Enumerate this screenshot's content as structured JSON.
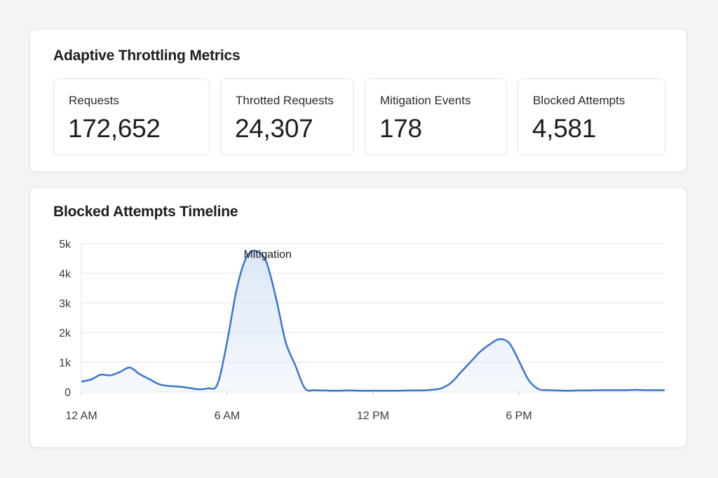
{
  "metrics_card": {
    "title": "Adaptive Throttling Metrics",
    "stats": [
      {
        "label": "Requests",
        "value": "172,652"
      },
      {
        "label": "Throtted Requests",
        "value": "24,307"
      },
      {
        "label": "Mitigation Events",
        "value": "178"
      },
      {
        "label": "Blocked Attempts",
        "value": "4,581"
      }
    ]
  },
  "timeline_card": {
    "title": "Blocked Attempts Timeline"
  },
  "colors": {
    "line": "#3a76cc",
    "fill": "#dbe6f5",
    "grid": "#e6e6e9",
    "text": "#1d1d1f"
  },
  "chart_data": {
    "type": "area",
    "title": "Blocked Attempts Timeline",
    "xlabel": "",
    "ylabel": "",
    "x_unit": "hour of day",
    "x_ticks": [
      {
        "x": 0,
        "label": "12 AM"
      },
      {
        "x": 6,
        "label": "6 AM"
      },
      {
        "x": 12,
        "label": "12 PM"
      },
      {
        "x": 18,
        "label": "6 PM"
      }
    ],
    "y_ticks": [
      {
        "y": 0,
        "label": "0"
      },
      {
        "y": 1000,
        "label": "1k"
      },
      {
        "y": 2000,
        "label": "2k"
      },
      {
        "y": 3000,
        "label": "3k"
      },
      {
        "y": 4000,
        "label": "4k"
      },
      {
        "y": 5000,
        "label": "5k"
      }
    ],
    "xlim": [
      0,
      24
    ],
    "ylim": [
      0,
      5000
    ],
    "grid": true,
    "annotations": [
      {
        "x": 6.1,
        "y": 4700,
        "text": "Mitigation"
      }
    ],
    "series": [
      {
        "x": [
          0,
          0.4,
          0.8,
          1.2,
          1.6,
          2.0,
          2.4,
          2.8,
          3.2,
          3.6,
          4.0,
          4.4,
          4.8,
          5.2,
          5.6,
          6.0,
          6.4,
          6.8,
          7.2,
          7.6,
          8.0,
          8.4,
          8.8,
          9.2,
          9.6,
          10,
          10.5,
          11,
          11.5,
          12,
          12.5,
          13,
          13.5,
          14,
          14.4,
          14.8,
          15.2,
          15.6,
          16.0,
          16.4,
          16.8,
          17.2,
          17.6,
          18.0,
          18.4,
          18.8,
          19.2,
          19.6,
          20.0,
          20.4,
          20.8,
          21.2,
          21.6,
          22.0,
          22.4,
          22.8,
          23.2,
          23.6,
          24
        ],
        "y": [
          350,
          420,
          580,
          560,
          680,
          820,
          600,
          430,
          260,
          200,
          180,
          140,
          90,
          120,
          260,
          1700,
          3500,
          4550,
          4750,
          4400,
          3200,
          1700,
          900,
          120,
          60,
          50,
          40,
          50,
          40,
          40,
          40,
          40,
          50,
          50,
          70,
          120,
          300,
          650,
          1000,
          1350,
          1600,
          1780,
          1650,
          1050,
          400,
          100,
          60,
          50,
          40,
          50,
          50,
          60,
          60,
          60,
          60,
          70,
          60,
          60,
          60
        ]
      }
    ]
  }
}
